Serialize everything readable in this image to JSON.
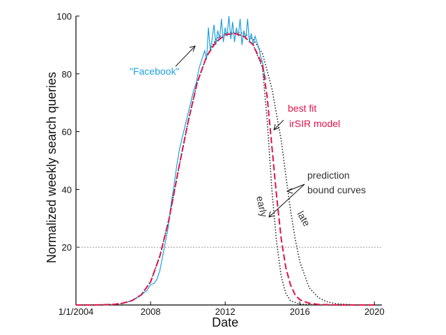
{
  "chart_data": {
    "type": "line",
    "title": "",
    "xlabel": "Date",
    "ylabel": "Normalized weekly search queries",
    "xlim": [
      2004.0,
      2020.4
    ],
    "ylim": [
      0,
      100
    ],
    "x_ticks": [
      {
        "value": 2004.0,
        "label": "1/1/2004"
      },
      {
        "value": 2008.0,
        "label": "2008"
      },
      {
        "value": 2012.0,
        "label": "2012"
      },
      {
        "value": 2016.0,
        "label": "2016"
      },
      {
        "value": 2020.0,
        "label": "2020"
      }
    ],
    "y_ticks": [
      {
        "value": 20,
        "label": "20"
      },
      {
        "value": 40,
        "label": "40"
      },
      {
        "value": 60,
        "label": "60"
      },
      {
        "value": 80,
        "label": "80"
      },
      {
        "value": 100,
        "label": "100"
      }
    ],
    "reference_line": {
      "y": 20,
      "style": "dotted",
      "color": "#888888"
    },
    "grid": false,
    "series": [
      {
        "name": "\"Facebook\"",
        "color": "#1f9fe0",
        "style": "solid",
        "x": [
          2006.5,
          2007.0,
          2007.4,
          2007.8,
          2008.0,
          2008.2,
          2008.35,
          2008.5,
          2008.65,
          2008.8,
          2008.95,
          2009.1,
          2009.25,
          2009.4,
          2009.55,
          2009.7,
          2009.85,
          2010.0,
          2010.15,
          2010.3,
          2010.45,
          2010.6,
          2010.75,
          2010.9,
          2011.0,
          2011.1,
          2011.2,
          2011.3,
          2011.4,
          2011.5,
          2011.6,
          2011.7,
          2011.8,
          2011.9,
          2012.0,
          2012.1,
          2012.2,
          2012.3,
          2012.4,
          2012.5,
          2012.6,
          2012.7,
          2012.8,
          2012.9,
          2013.0,
          2013.1,
          2013.2,
          2013.3,
          2013.4,
          2013.5,
          2013.6,
          2013.7,
          2013.8,
          2013.9,
          2014.0,
          2014.1,
          2014.2
        ],
        "y": [
          0.5,
          1.5,
          3,
          5,
          7,
          7.5,
          9,
          12,
          17,
          22,
          27,
          35,
          41,
          48,
          54,
          58,
          62,
          66,
          70,
          74,
          77,
          82,
          85,
          88,
          85,
          96,
          88,
          92,
          97,
          90,
          95,
          92,
          99,
          91,
          96,
          93,
          100,
          92,
          98,
          91,
          96,
          93,
          99,
          90,
          95,
          92,
          99,
          91,
          94,
          90,
          93,
          91,
          89,
          86,
          84,
          80,
          78
        ]
      },
      {
        "name": "best fit irSIR model",
        "color": "#e2114a",
        "style": "dashed",
        "x": [
          2004.0,
          2005.0,
          2006.0,
          2006.5,
          2007.0,
          2007.5,
          2008.0,
          2008.5,
          2009.0,
          2009.5,
          2010.0,
          2010.5,
          2011.0,
          2011.5,
          2012.0,
          2012.5,
          2013.0,
          2013.5,
          2014.0,
          2014.25,
          2014.5,
          2014.75,
          2015.0,
          2015.25,
          2015.5,
          2015.75,
          2016.0,
          2016.5,
          2017.0,
          2018.0,
          2019.0,
          2020.0
        ],
        "y": [
          0,
          0,
          0.2,
          0.6,
          1.5,
          3.5,
          8,
          17,
          30,
          47,
          63,
          77,
          86,
          91,
          93.5,
          94,
          93,
          90,
          83,
          72,
          55,
          38,
          23,
          13,
          7,
          3.5,
          1.8,
          0.6,
          0.2,
          0,
          0,
          0
        ]
      },
      {
        "name": "early",
        "color": "#222222",
        "style": "dotted",
        "x": [
          2004.0,
          2005.0,
          2006.0,
          2006.5,
          2007.0,
          2007.5,
          2008.0,
          2008.5,
          2009.0,
          2009.5,
          2010.0,
          2010.5,
          2011.0,
          2011.5,
          2012.0,
          2012.5,
          2013.0,
          2013.5,
          2014.0,
          2014.25,
          2014.5,
          2014.75,
          2015.0,
          2015.25,
          2015.5,
          2016.0,
          2017.0,
          2020.0
        ],
        "y": [
          0,
          0,
          0.2,
          0.6,
          1.5,
          3.5,
          8,
          17,
          30,
          47,
          63,
          77,
          86,
          91,
          93.5,
          94,
          93,
          90,
          82,
          64,
          40,
          22,
          10,
          4,
          1.5,
          0.3,
          0,
          0
        ]
      },
      {
        "name": "late",
        "color": "#222222",
        "style": "dotted",
        "x": [
          2004.0,
          2005.0,
          2006.0,
          2006.5,
          2007.0,
          2007.5,
          2008.0,
          2008.5,
          2009.0,
          2009.5,
          2010.0,
          2010.5,
          2011.0,
          2011.5,
          2012.0,
          2012.5,
          2013.0,
          2013.5,
          2014.0,
          2014.5,
          2015.0,
          2015.25,
          2015.5,
          2015.75,
          2016.0,
          2016.5,
          2017.0,
          2017.5,
          2018.0,
          2019.0,
          2020.0
        ],
        "y": [
          0,
          0,
          0.2,
          0.6,
          1.5,
          3.5,
          8,
          17,
          30,
          47,
          63,
          77,
          86,
          92,
          94,
          94.5,
          94,
          92,
          87,
          75,
          57,
          45,
          33,
          23,
          15,
          6,
          2.5,
          1,
          0.4,
          0,
          0
        ]
      }
    ],
    "annotations": [
      {
        "id": "facebook-label",
        "text": "\"Facebook\"",
        "color": "#1f9fe0"
      },
      {
        "id": "best-fit-line1",
        "text": "best fit",
        "color": "#e2114a"
      },
      {
        "id": "best-fit-line2",
        "text": "irSIR model",
        "color": "#e2114a"
      },
      {
        "id": "prediction-line1",
        "text": "prediction",
        "color": "#333333"
      },
      {
        "id": "prediction-line2",
        "text": "bound curves",
        "color": "#333333"
      },
      {
        "id": "early-label",
        "text": "early",
        "color": "#333333"
      },
      {
        "id": "late-label",
        "text": "late",
        "color": "#333333"
      }
    ]
  }
}
